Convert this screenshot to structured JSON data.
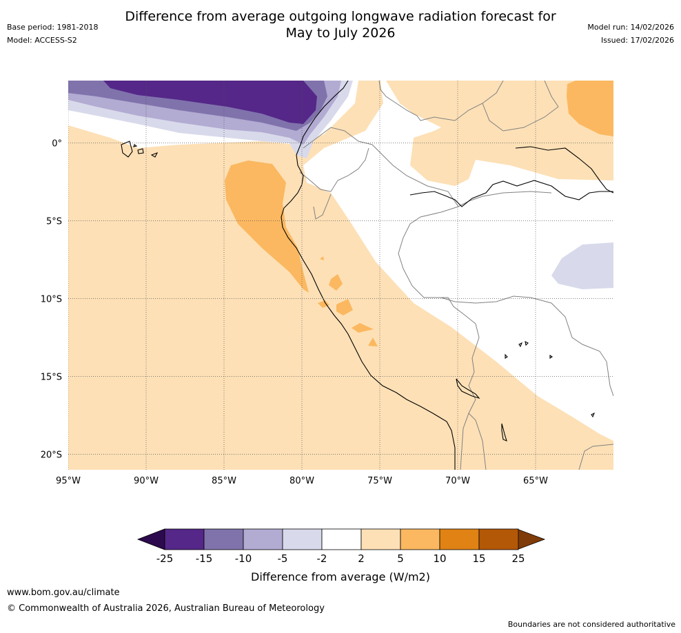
{
  "header": {
    "title_line1": "Difference from average outgoing longwave radiation forecast for",
    "title_line2": "May to July 2026",
    "base_period": "Base period: 1981-2018",
    "model": "Model: ACCESS-S2",
    "model_run": "Model run: 14/02/2026",
    "issued": "Issued: 17/02/2026"
  },
  "map": {
    "lat_labels": [
      "0°",
      "5°S",
      "10°S",
      "15°S",
      "20°S"
    ],
    "lon_labels": [
      "95°W",
      "90°W",
      "85°W",
      "80°W",
      "75°W",
      "70°W",
      "65°W"
    ],
    "lon_range": [
      -95,
      -60
    ],
    "lat_range": [
      -21,
      4
    ]
  },
  "colorbar": {
    "label": "Difference from average (W/m2)",
    "ticks": [
      "-25",
      "-15",
      "-10",
      "-5",
      "-2",
      "2",
      "5",
      "10",
      "15",
      "25"
    ],
    "colors": {
      "min_extend": "#2d0a4e",
      "c_neg25_neg15": "#542788",
      "c_neg15_neg10": "#8073ac",
      "c_neg10_neg5": "#b2abd2",
      "c_neg5_neg2": "#d8daeb",
      "c_neg2_2": "#ffffff",
      "c_2_5": "#fde0b6",
      "c_5_10": "#fbb860",
      "c_10_15": "#e08214",
      "c_15_25": "#b35806",
      "max_extend": "#7f3b08"
    }
  },
  "footer": {
    "url": "www.bom.gov.au/climate",
    "copyright": "© Commonwealth of Australia 2026, Australian Bureau of Meteorology",
    "note": "Boundaries are not considered authoritative"
  }
}
